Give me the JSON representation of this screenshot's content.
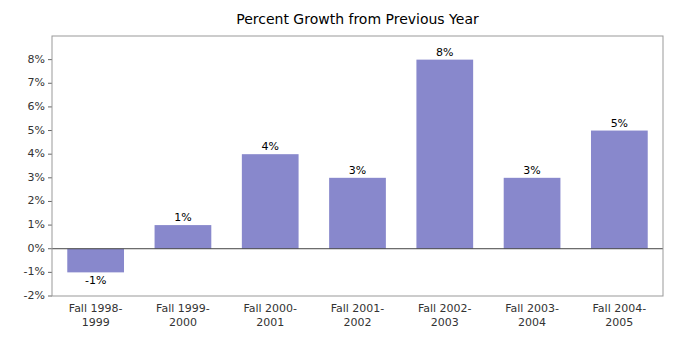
{
  "chart_data": {
    "type": "bar",
    "title": "Percent Growth from Previous Year",
    "categories": [
      "Fall 1998-\n1999",
      "Fall 1999-\n2000",
      "Fall 2000-\n2001",
      "Fall 2001-\n2002",
      "Fall 2002-\n2003",
      "Fall 2003-\n2004",
      "Fall 2004-\n2005"
    ],
    "values": [
      -1,
      1,
      4,
      3,
      8,
      3,
      5
    ],
    "value_labels": [
      "-1%",
      "1%",
      "4%",
      "3%",
      "8%",
      "3%",
      "5%"
    ],
    "data_labels": true,
    "color": "#8888cc",
    "ylim": [
      -2,
      9
    ],
    "yticks": [
      {
        "value": -2,
        "label": "-2%"
      },
      {
        "value": -1,
        "label": "-1%"
      },
      {
        "value": 0,
        "label": "0%"
      },
      {
        "value": 1,
        "label": "1%"
      },
      {
        "value": 2,
        "label": "2%"
      },
      {
        "value": 3,
        "label": "3%"
      },
      {
        "value": 4,
        "label": "4%"
      },
      {
        "value": 5,
        "label": "5%"
      },
      {
        "value": 6,
        "label": "6%"
      },
      {
        "value": 7,
        "label": "7%"
      },
      {
        "value": 8,
        "label": "8%"
      }
    ],
    "grid": false
  }
}
